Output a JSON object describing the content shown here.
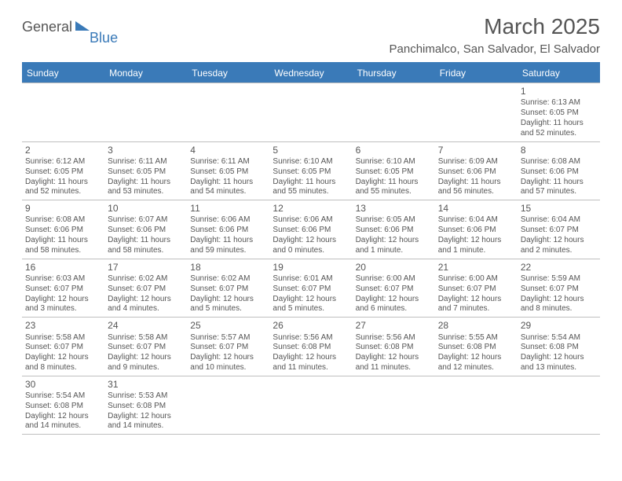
{
  "brand": {
    "part1": "General",
    "part2": "Blue"
  },
  "title": "March 2025",
  "location": "Panchimalco, San Salvador, El Salvador",
  "colors": {
    "header_bg": "#3a7ab8",
    "header_text": "#ffffff",
    "text": "#555555",
    "rule": "#bfbfbf"
  },
  "day_headers": [
    "Sunday",
    "Monday",
    "Tuesday",
    "Wednesday",
    "Thursday",
    "Friday",
    "Saturday"
  ],
  "weeks": [
    [
      null,
      null,
      null,
      null,
      null,
      null,
      {
        "n": "1",
        "sunrise": "6:13 AM",
        "sunset": "6:05 PM",
        "daylight": "11 hours and 52 minutes."
      }
    ],
    [
      {
        "n": "2",
        "sunrise": "6:12 AM",
        "sunset": "6:05 PM",
        "daylight": "11 hours and 52 minutes."
      },
      {
        "n": "3",
        "sunrise": "6:11 AM",
        "sunset": "6:05 PM",
        "daylight": "11 hours and 53 minutes."
      },
      {
        "n": "4",
        "sunrise": "6:11 AM",
        "sunset": "6:05 PM",
        "daylight": "11 hours and 54 minutes."
      },
      {
        "n": "5",
        "sunrise": "6:10 AM",
        "sunset": "6:05 PM",
        "daylight": "11 hours and 55 minutes."
      },
      {
        "n": "6",
        "sunrise": "6:10 AM",
        "sunset": "6:05 PM",
        "daylight": "11 hours and 55 minutes."
      },
      {
        "n": "7",
        "sunrise": "6:09 AM",
        "sunset": "6:06 PM",
        "daylight": "11 hours and 56 minutes."
      },
      {
        "n": "8",
        "sunrise": "6:08 AM",
        "sunset": "6:06 PM",
        "daylight": "11 hours and 57 minutes."
      }
    ],
    [
      {
        "n": "9",
        "sunrise": "6:08 AM",
        "sunset": "6:06 PM",
        "daylight": "11 hours and 58 minutes."
      },
      {
        "n": "10",
        "sunrise": "6:07 AM",
        "sunset": "6:06 PM",
        "daylight": "11 hours and 58 minutes."
      },
      {
        "n": "11",
        "sunrise": "6:06 AM",
        "sunset": "6:06 PM",
        "daylight": "11 hours and 59 minutes."
      },
      {
        "n": "12",
        "sunrise": "6:06 AM",
        "sunset": "6:06 PM",
        "daylight": "12 hours and 0 minutes."
      },
      {
        "n": "13",
        "sunrise": "6:05 AM",
        "sunset": "6:06 PM",
        "daylight": "12 hours and 1 minute."
      },
      {
        "n": "14",
        "sunrise": "6:04 AM",
        "sunset": "6:06 PM",
        "daylight": "12 hours and 1 minute."
      },
      {
        "n": "15",
        "sunrise": "6:04 AM",
        "sunset": "6:07 PM",
        "daylight": "12 hours and 2 minutes."
      }
    ],
    [
      {
        "n": "16",
        "sunrise": "6:03 AM",
        "sunset": "6:07 PM",
        "daylight": "12 hours and 3 minutes."
      },
      {
        "n": "17",
        "sunrise": "6:02 AM",
        "sunset": "6:07 PM",
        "daylight": "12 hours and 4 minutes."
      },
      {
        "n": "18",
        "sunrise": "6:02 AM",
        "sunset": "6:07 PM",
        "daylight": "12 hours and 5 minutes."
      },
      {
        "n": "19",
        "sunrise": "6:01 AM",
        "sunset": "6:07 PM",
        "daylight": "12 hours and 5 minutes."
      },
      {
        "n": "20",
        "sunrise": "6:00 AM",
        "sunset": "6:07 PM",
        "daylight": "12 hours and 6 minutes."
      },
      {
        "n": "21",
        "sunrise": "6:00 AM",
        "sunset": "6:07 PM",
        "daylight": "12 hours and 7 minutes."
      },
      {
        "n": "22",
        "sunrise": "5:59 AM",
        "sunset": "6:07 PM",
        "daylight": "12 hours and 8 minutes."
      }
    ],
    [
      {
        "n": "23",
        "sunrise": "5:58 AM",
        "sunset": "6:07 PM",
        "daylight": "12 hours and 8 minutes."
      },
      {
        "n": "24",
        "sunrise": "5:58 AM",
        "sunset": "6:07 PM",
        "daylight": "12 hours and 9 minutes."
      },
      {
        "n": "25",
        "sunrise": "5:57 AM",
        "sunset": "6:07 PM",
        "daylight": "12 hours and 10 minutes."
      },
      {
        "n": "26",
        "sunrise": "5:56 AM",
        "sunset": "6:08 PM",
        "daylight": "12 hours and 11 minutes."
      },
      {
        "n": "27",
        "sunrise": "5:56 AM",
        "sunset": "6:08 PM",
        "daylight": "12 hours and 11 minutes."
      },
      {
        "n": "28",
        "sunrise": "5:55 AM",
        "sunset": "6:08 PM",
        "daylight": "12 hours and 12 minutes."
      },
      {
        "n": "29",
        "sunrise": "5:54 AM",
        "sunset": "6:08 PM",
        "daylight": "12 hours and 13 minutes."
      }
    ],
    [
      {
        "n": "30",
        "sunrise": "5:54 AM",
        "sunset": "6:08 PM",
        "daylight": "12 hours and 14 minutes."
      },
      {
        "n": "31",
        "sunrise": "5:53 AM",
        "sunset": "6:08 PM",
        "daylight": "12 hours and 14 minutes."
      },
      null,
      null,
      null,
      null,
      null
    ]
  ],
  "labels": {
    "sunrise_prefix": "Sunrise: ",
    "sunset_prefix": "Sunset: ",
    "daylight_prefix": "Daylight: "
  }
}
